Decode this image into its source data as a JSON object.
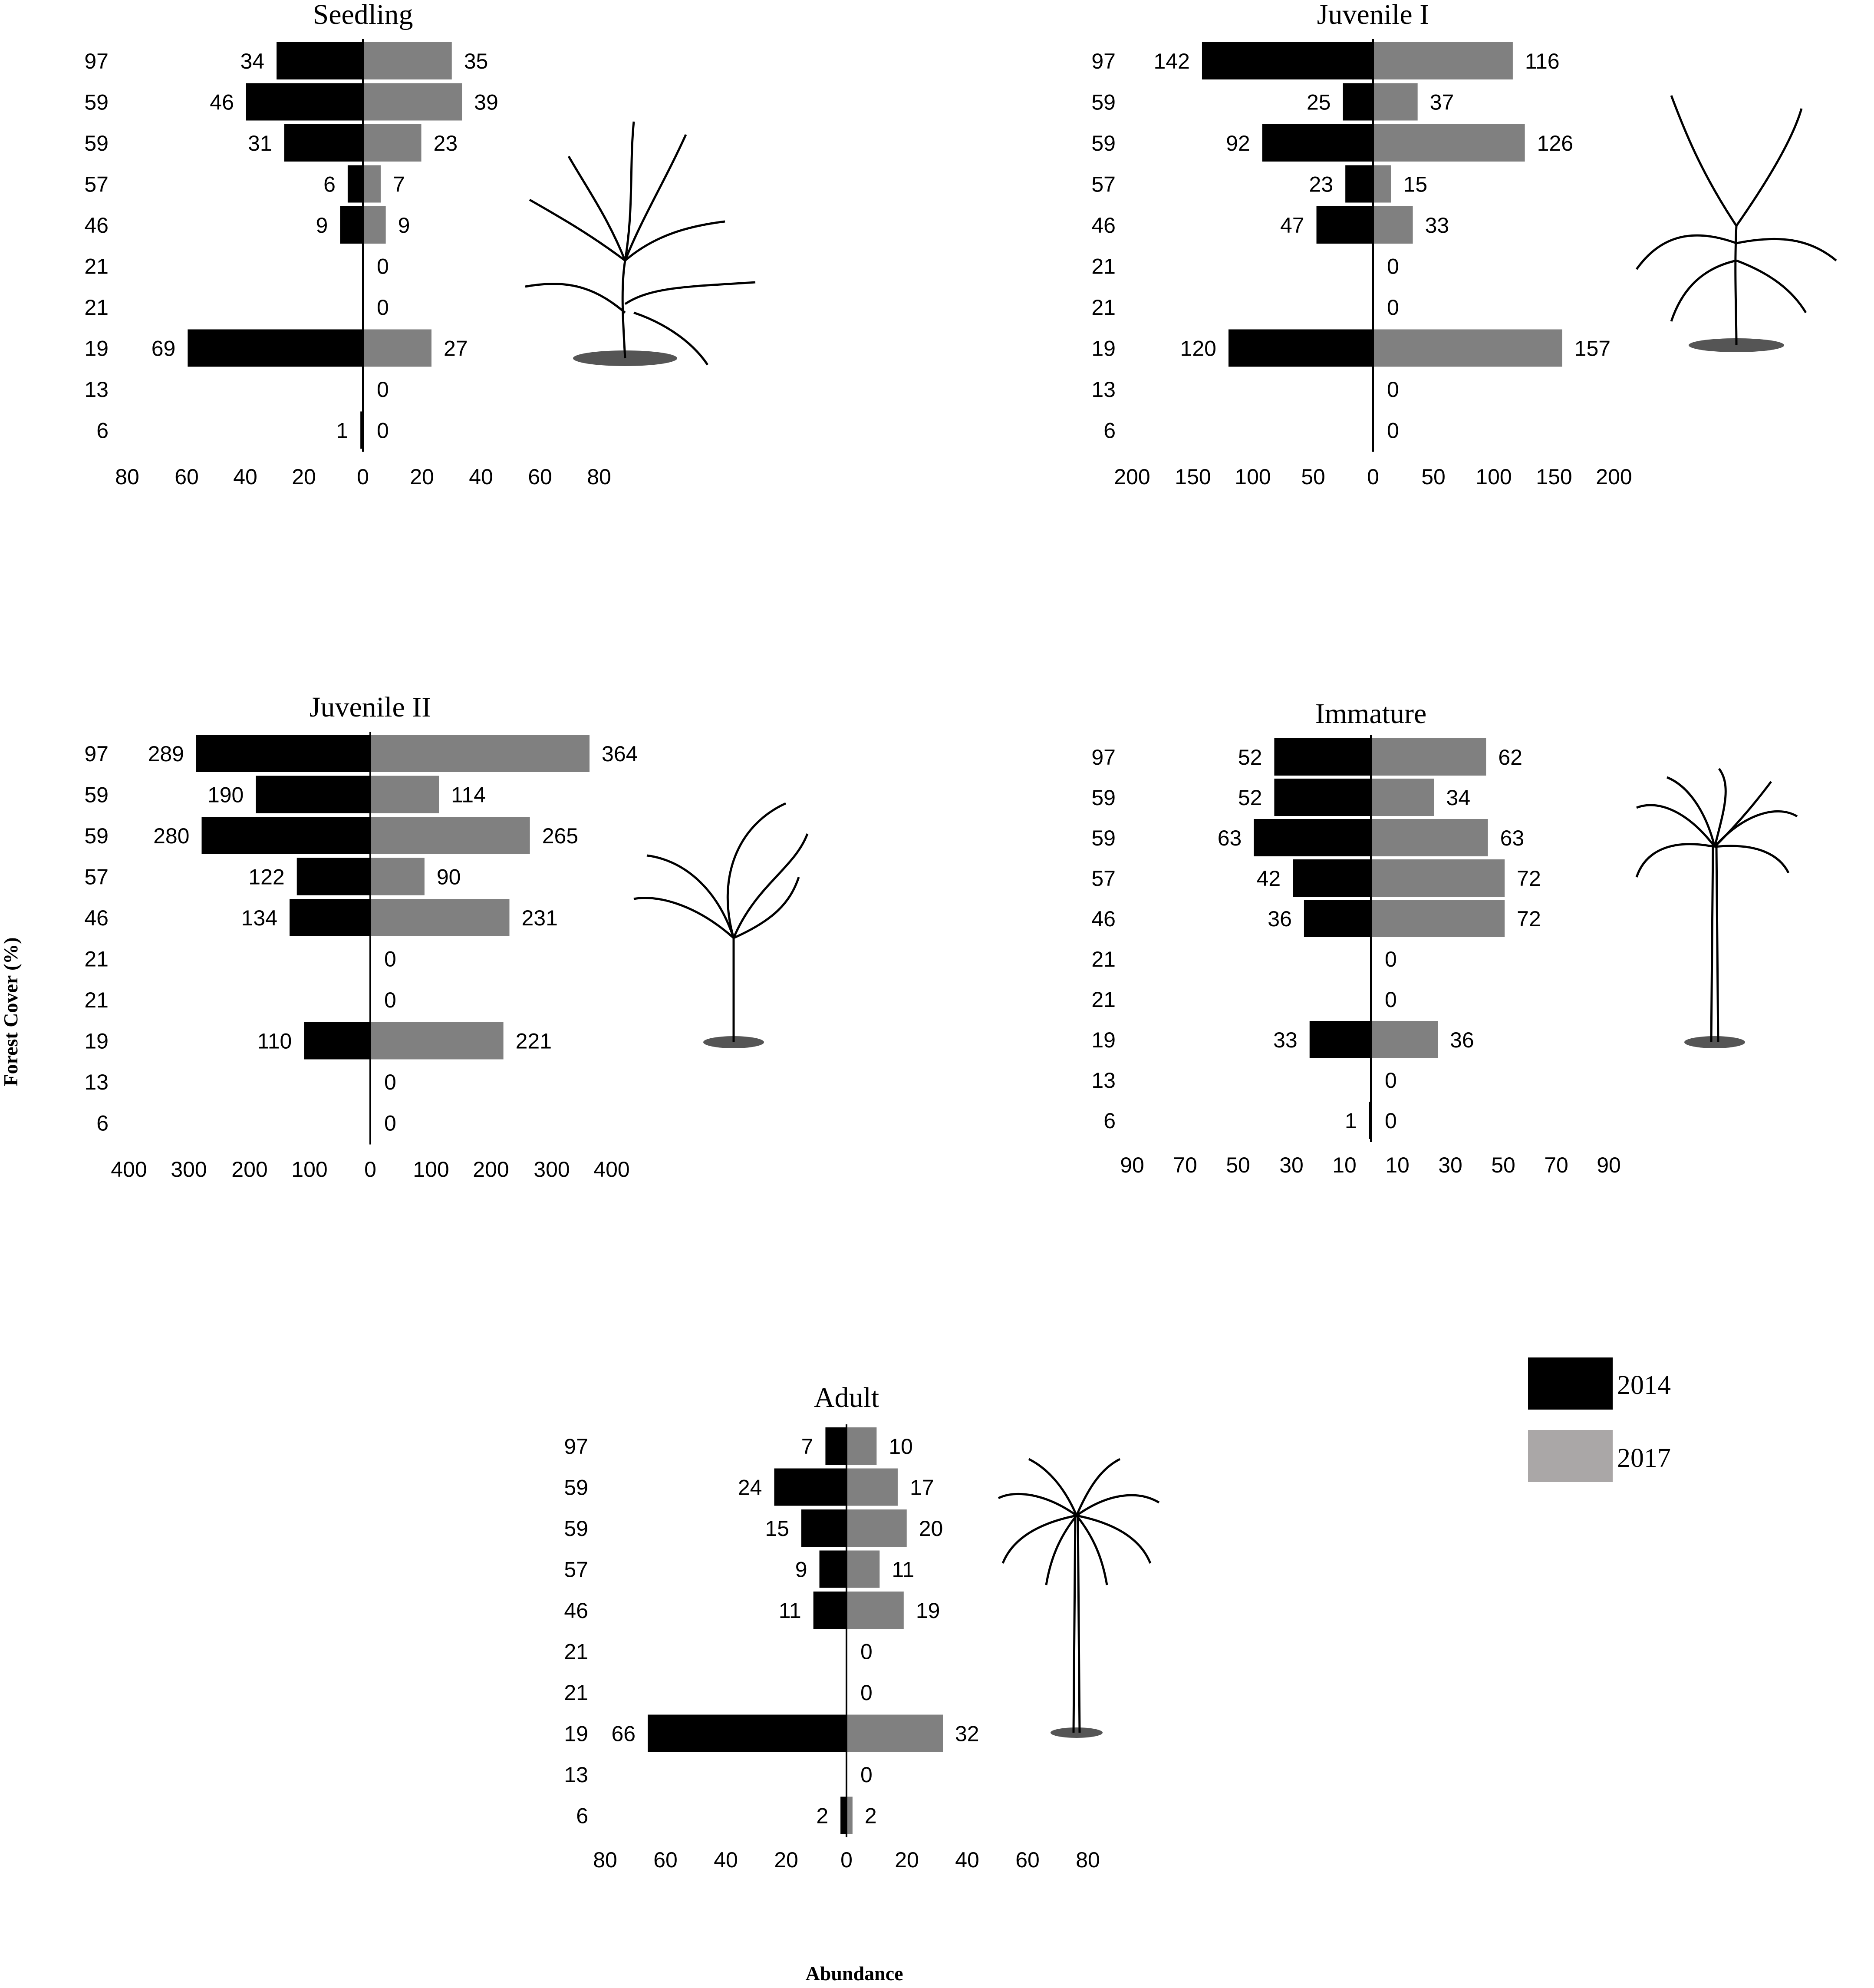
{
  "figure": {
    "y_axis_label": "Forest Cover (%)",
    "x_axis_label": "Abundance"
  },
  "legend": {
    "items": [
      {
        "label": "2014",
        "color": "#000000"
      },
      {
        "label": "2017",
        "color": "#aaa7a7"
      }
    ]
  },
  "colors": {
    "bar_2014": "#000000",
    "bar_2017": "#808080",
    "axis": "#000000",
    "text": "#000000"
  },
  "chart_data": [
    {
      "type": "bar",
      "orientation": "horizontal-diverging",
      "title": "Seedling",
      "illustration": "palm-seedling-illustration",
      "categories": [
        "97",
        "59",
        "59",
        "57",
        "46",
        "21",
        "21",
        "19",
        "13",
        "6"
      ],
      "series": [
        {
          "name": "2014",
          "side": "left",
          "values": [
            34,
            46,
            31,
            6,
            9,
            0,
            0,
            69,
            0,
            1
          ],
          "labels": [
            "34",
            "46",
            "31",
            "6",
            "9",
            "",
            "",
            "69",
            "",
            "1"
          ]
        },
        {
          "name": "2017",
          "side": "right",
          "values": [
            35,
            39,
            23,
            7,
            9,
            0,
            0,
            27,
            0,
            0
          ],
          "labels": [
            "35",
            "39",
            "23",
            "7",
            "9",
            "0",
            "0",
            "27",
            "0",
            "0"
          ]
        }
      ],
      "xlim": [
        -80,
        80
      ],
      "ticks": [
        "80",
        "60",
        "40",
        "20",
        "0",
        "20",
        "40",
        "60",
        "80"
      ]
    },
    {
      "type": "bar",
      "orientation": "horizontal-diverging",
      "title": "Juvenile I",
      "illustration": "palm-juvenile-i-illustration",
      "categories": [
        "97",
        "59",
        "59",
        "57",
        "46",
        "21",
        "21",
        "19",
        "13",
        "6"
      ],
      "series": [
        {
          "name": "2014",
          "side": "left",
          "values": [
            142,
            25,
            92,
            23,
            47,
            0,
            0,
            120,
            0,
            0
          ],
          "labels": [
            "142",
            "25",
            "92",
            "23",
            "47",
            "",
            "",
            "120",
            "",
            ""
          ]
        },
        {
          "name": "2017",
          "side": "right",
          "values": [
            116,
            37,
            126,
            15,
            33,
            0,
            0,
            157,
            0,
            0
          ],
          "labels": [
            "116",
            "37",
            "126",
            "15",
            "33",
            "0",
            "0",
            "157",
            "0",
            "0"
          ]
        }
      ],
      "xlim": [
        -200,
        200
      ],
      "ticks": [
        "200",
        "150",
        "100",
        "50",
        "0",
        "50",
        "100",
        "150",
        "200"
      ]
    },
    {
      "type": "bar",
      "orientation": "horizontal-diverging",
      "title": "Juvenile II",
      "illustration": "palm-juvenile-ii-illustration",
      "categories": [
        "97",
        "59",
        "59",
        "57",
        "46",
        "21",
        "21",
        "19",
        "13",
        "6"
      ],
      "series": [
        {
          "name": "2014",
          "side": "left",
          "values": [
            289,
            190,
            280,
            122,
            134,
            0,
            0,
            110,
            0,
            0
          ],
          "labels": [
            "289",
            "190",
            "280",
            "122",
            "134",
            "",
            "",
            "110",
            "",
            ""
          ]
        },
        {
          "name": "2017",
          "side": "right",
          "values": [
            364,
            114,
            265,
            90,
            231,
            0,
            0,
            221,
            0,
            0
          ],
          "labels": [
            "364",
            "114",
            "265",
            "90",
            "231",
            "0",
            "0",
            "221",
            "0",
            "0"
          ]
        }
      ],
      "xlim": [
        -400,
        400
      ],
      "ticks": [
        "400",
        "300",
        "200",
        "100",
        "0",
        "100",
        "200",
        "300",
        "400"
      ]
    },
    {
      "type": "bar",
      "orientation": "horizontal-diverging",
      "title": "Immature",
      "illustration": "palm-immature-illustration",
      "categories": [
        "97",
        "59",
        "59",
        "57",
        "46",
        "21",
        "21",
        "19",
        "13",
        "6"
      ],
      "series": [
        {
          "name": "2014",
          "side": "left",
          "values": [
            52,
            52,
            63,
            42,
            36,
            0,
            0,
            33,
            0,
            1
          ],
          "labels": [
            "52",
            "52",
            "63",
            "42",
            "36",
            "",
            "",
            "33",
            "",
            "1"
          ]
        },
        {
          "name": "2017",
          "side": "right",
          "values": [
            62,
            34,
            63,
            72,
            72,
            0,
            0,
            36,
            0,
            0
          ],
          "labels": [
            "62",
            "34",
            "63",
            "72",
            "72",
            "0",
            "0",
            "36",
            "0",
            "0"
          ]
        }
      ],
      "xlim": [
        -90,
        90
      ],
      "ticks": [
        "90",
        "70",
        "50",
        "30",
        "10",
        "10",
        "30",
        "50",
        "70",
        "90"
      ]
    },
    {
      "type": "bar",
      "orientation": "horizontal-diverging",
      "title": "Adult",
      "illustration": "palm-adult-illustration",
      "categories": [
        "97",
        "59",
        "59",
        "57",
        "46",
        "21",
        "21",
        "19",
        "13",
        "6"
      ],
      "series": [
        {
          "name": "2014",
          "side": "left",
          "values": [
            7,
            24,
            15,
            9,
            11,
            0,
            0,
            66,
            0,
            2
          ],
          "labels": [
            "7",
            "24",
            "15",
            "9",
            "11",
            "",
            "",
            "66",
            "",
            "2"
          ]
        },
        {
          "name": "2017",
          "side": "right",
          "values": [
            10,
            17,
            20,
            11,
            19,
            0,
            0,
            32,
            0,
            2
          ],
          "labels": [
            "10",
            "17",
            "20",
            "11",
            "19",
            "0",
            "0",
            "32",
            "0",
            "2"
          ]
        }
      ],
      "xlim": [
        -80,
        80
      ],
      "ticks": [
        "80",
        "60",
        "40",
        "20",
        "0",
        "20",
        "40",
        "60",
        "80"
      ]
    }
  ]
}
